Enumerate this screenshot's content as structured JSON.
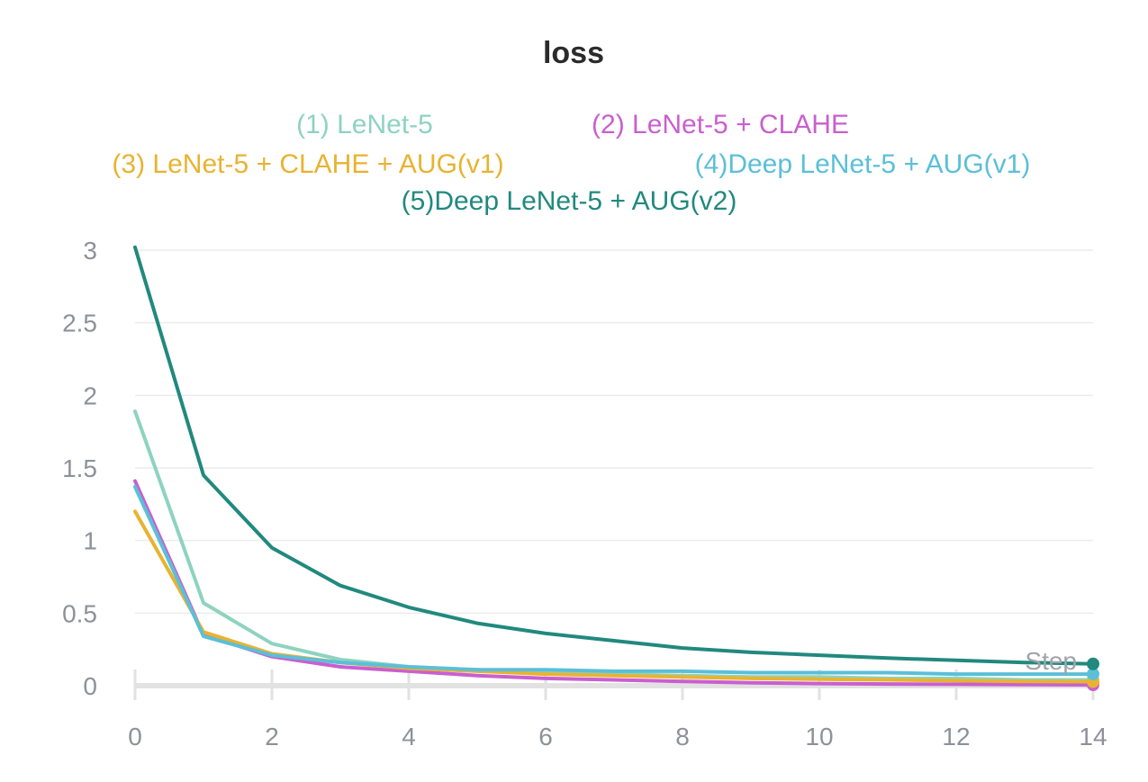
{
  "chart_data": {
    "type": "line",
    "title": "loss",
    "xlabel": "",
    "ylabel": "",
    "x": [
      0,
      1,
      2,
      3,
      4,
      5,
      6,
      7,
      8,
      9,
      10,
      11,
      12,
      13,
      14
    ],
    "xticks": [
      0,
      2,
      4,
      6,
      8,
      10,
      12,
      14
    ],
    "yticks": [
      0,
      0.5,
      1,
      1.5,
      2,
      2.5,
      3
    ],
    "ytick_labels": [
      "0",
      "0.5",
      "1",
      "1.5",
      "2",
      "2.5",
      "3"
    ],
    "xlim": [
      0,
      14
    ],
    "ylim": [
      0,
      3
    ],
    "grid": true,
    "legend_position": "top",
    "annotation": "Step",
    "series": [
      {
        "name": "(1) LeNet-5",
        "color": "#8dd3c0",
        "values": [
          1.89,
          0.57,
          0.29,
          0.18,
          0.13,
          0.11,
          0.09,
          0.08,
          0.07,
          0.06,
          0.06,
          0.05,
          0.05,
          0.04,
          0.04
        ]
      },
      {
        "name": "(2) LeNet-5 + CLAHE",
        "color": "#c95fcf",
        "values": [
          1.41,
          0.35,
          0.2,
          0.13,
          0.1,
          0.07,
          0.05,
          0.04,
          0.03,
          0.02,
          0.015,
          0.012,
          0.01,
          0.008,
          0.006
        ]
      },
      {
        "name": "(3) LeNet-5 + CLAHE + AUG(v1)",
        "color": "#e8b331",
        "values": [
          1.2,
          0.37,
          0.22,
          0.16,
          0.12,
          0.1,
          0.08,
          0.07,
          0.06,
          0.05,
          0.045,
          0.04,
          0.035,
          0.03,
          0.028
        ]
      },
      {
        "name": "(4)Deep LeNet-5 + AUG(v1)",
        "color": "#5bbfd8",
        "values": [
          1.37,
          0.34,
          0.21,
          0.16,
          0.13,
          0.11,
          0.11,
          0.1,
          0.1,
          0.09,
          0.09,
          0.09,
          0.08,
          0.08,
          0.08
        ]
      },
      {
        "name": "(5)Deep LeNet-5 + AUG(v2)",
        "color": "#21897e",
        "values": [
          3.02,
          1.45,
          0.95,
          0.69,
          0.54,
          0.43,
          0.36,
          0.31,
          0.26,
          0.23,
          0.21,
          0.19,
          0.175,
          0.16,
          0.15
        ]
      }
    ],
    "style": {
      "background": "#ffffff",
      "grid_color": "#ececec",
      "tick_text_color": "#8e9199",
      "title_color": "#2b2b2b",
      "baseline_color": "#e2e2e2",
      "annotation_color": "#a0a3a8"
    }
  }
}
